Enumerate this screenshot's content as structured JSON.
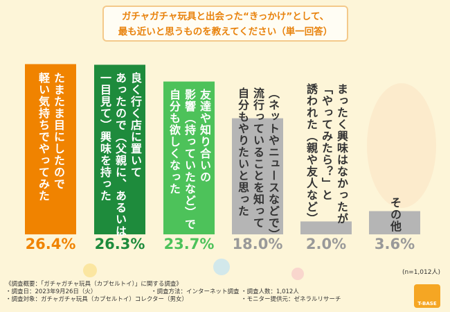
{
  "chart_data": {
    "type": "bar",
    "title": [
      "ガチャガチャ玩具と出会った“きっかけ”として、",
      "最も近いと思うものを教えてください（単一回答）"
    ],
    "categories": [
      [
        "たまたま目にしたので",
        "軽い気持ちでやってみた"
      ],
      [
        "良く行く店に置いて",
        "あったので（父親に、あるいは",
        "一目見て）興味を持った"
      ],
      [
        "友達や知り合いの",
        "影響（持っていたなど）で",
        "自分も欲しくなった"
      ],
      [
        "（ネットやニュースなどで）",
        "流行っていることを知って",
        "自分もやりたいと思った"
      ],
      [
        "まったく興味はなかったが",
        "「やってみたら？」と",
        "誘われた（親や友人など）"
      ],
      [
        "その他"
      ]
    ],
    "values": [
      26.4,
      26.3,
      23.7,
      18.0,
      2.0,
      3.6
    ],
    "value_labels": [
      "26.4%",
      "26.3%",
      "23.7%",
      "18.0%",
      "2.0%",
      "3.6%"
    ],
    "colors": [
      "#f08300",
      "#1e8b3c",
      "#4dc25a",
      "#b5b5b5",
      "#b5b5b5",
      "#b5b5b5"
    ],
    "note": "(n=1,012人)"
  },
  "survey": {
    "heading": "《調査概要：「ガチャガチャ玩具（カプセルトイ）」に関する調査》",
    "items": [
      "・調査日：2023年9月26日（火）",
      "・調査方法：インターネット調査",
      "・調査人数：1,012人",
      "・調査対象：ガチャガチャ玩具（カプセルトイ）コレクター（男女）",
      "・モニター提供元：ゼネラルリサーチ"
    ]
  },
  "logo": "T-BASE"
}
